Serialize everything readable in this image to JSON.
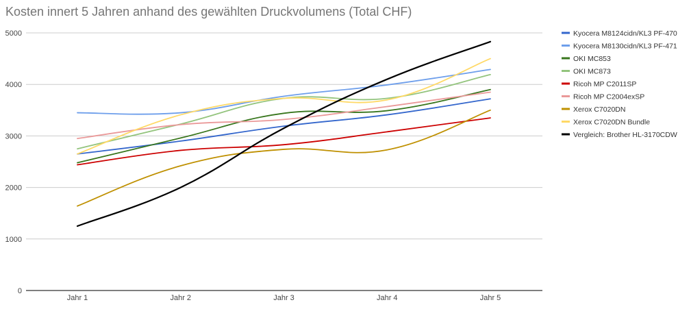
{
  "chart_data": {
    "type": "line",
    "title": "Kosten innert 5 Jahren anhand des gewählten Druckvolumens (Total CHF)",
    "xlabel": "",
    "ylabel": "",
    "categories": [
      "Jahr 1",
      "Jahr 2",
      "Jahr 3",
      "Jahr 4",
      "Jahr 5"
    ],
    "ylim": [
      0,
      5000
    ],
    "yticks": [
      0,
      1000,
      2000,
      3000,
      4000,
      5000
    ],
    "grid": true,
    "smooth": true,
    "legend_position": "right",
    "series": [
      {
        "name": "Kyocera M8124cidn/KL3 PF-470",
        "color": "#3366cc",
        "values": [
          2650,
          2900,
          3190,
          3410,
          3720
        ]
      },
      {
        "name": "Kyocera M8130cidn/KL3 PF-471",
        "color": "#6d9eeb",
        "values": [
          3450,
          3450,
          3770,
          3990,
          4290
        ]
      },
      {
        "name": "OKI MC853",
        "color": "#38761d",
        "values": [
          2480,
          2960,
          3440,
          3490,
          3900
        ]
      },
      {
        "name": "OKI MC873",
        "color": "#93c47d",
        "values": [
          2750,
          3230,
          3730,
          3730,
          4190
        ]
      },
      {
        "name": "Ricoh MP C2011SP",
        "color": "#cc0000",
        "values": [
          2440,
          2720,
          2830,
          3080,
          3350
        ]
      },
      {
        "name": "Ricoh MP C2004exSP",
        "color": "#ea9999",
        "values": [
          2950,
          3220,
          3320,
          3570,
          3850
        ]
      },
      {
        "name": "Xerox C7020DN",
        "color": "#bf9000",
        "values": [
          1640,
          2420,
          2740,
          2730,
          3500
        ]
      },
      {
        "name": "Xerox C7020DN Bundle",
        "color": "#ffd966",
        "values": [
          2650,
          3410,
          3730,
          3700,
          4500
        ]
      },
      {
        "name": "Vergleich: Brother HL-3170CDW",
        "color": "#000000",
        "values": [
          1250,
          2000,
          3150,
          4100,
          4830
        ]
      }
    ]
  }
}
